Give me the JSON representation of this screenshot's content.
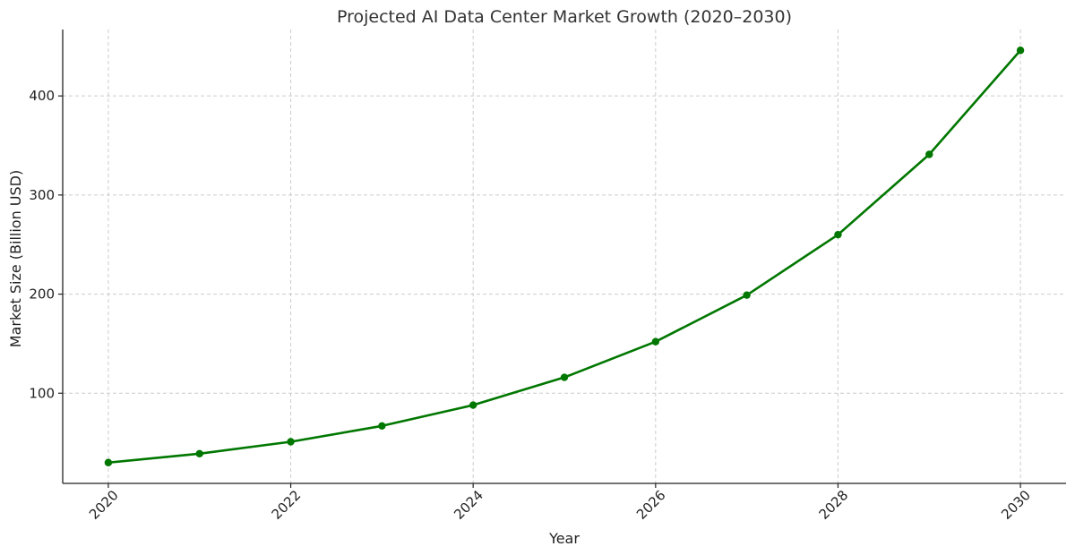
{
  "chart_data": {
    "type": "line",
    "title": "Projected AI Data Center Market Growth (2020–2030)",
    "xlabel": "Year",
    "ylabel": "Market Size (Billion USD)",
    "x": [
      2020,
      2021,
      2022,
      2023,
      2024,
      2025,
      2026,
      2027,
      2028,
      2029,
      2030
    ],
    "series": [
      {
        "values": [
          30,
          39,
          51,
          67,
          88,
          116,
          152,
          199,
          260,
          341,
          446
        ],
        "color": "#007700",
        "marker": "circle"
      }
    ],
    "xticks": [
      2020,
      2022,
      2024,
      2026,
      2028,
      2030
    ],
    "xtick_labels": [
      "2020",
      "2022",
      "2024",
      "2026",
      "2028",
      "2030"
    ],
    "yticks": [
      100,
      200,
      300,
      400
    ],
    "ytick_labels": [
      "100",
      "200",
      "300",
      "400"
    ],
    "xlim": [
      2019.5,
      2030.5
    ],
    "ylim": [
      9,
      467
    ],
    "grid": true,
    "grid_style": "dashed",
    "legend": "none"
  }
}
